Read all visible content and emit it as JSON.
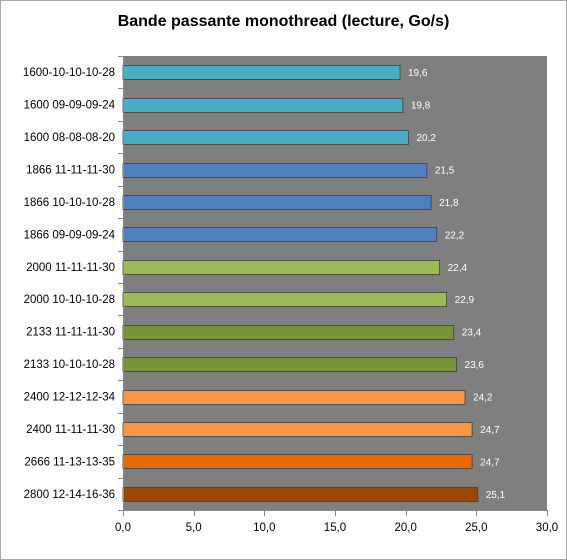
{
  "chart_data": {
    "type": "bar",
    "orientation": "horizontal",
    "title": "Bande passante monothread (lecture, Go/s)",
    "categories": [
      "1600-10-10-10-28",
      "1600 09-09-09-24",
      "1600 08-08-08-20",
      "1866 11-11-11-30",
      "1866 10-10-10-28",
      "1866 09-09-09-24",
      "2000 11-11-11-30",
      "2000 10-10-10-28",
      "2133 11-11-11-30",
      "2133 10-10-10-28",
      "2400 12-12-12-34",
      "2400 11-11-11-30",
      "2666 11-13-13-35",
      "2800 12-14-16-36"
    ],
    "values": [
      19.6,
      19.8,
      20.2,
      21.5,
      21.8,
      22.2,
      22.4,
      22.9,
      23.4,
      23.6,
      24.2,
      24.7,
      24.7,
      25.1
    ],
    "data_labels": [
      "19,6",
      "19,8",
      "20,2",
      "21,5",
      "21,8",
      "22,2",
      "22,4",
      "22,9",
      "23,4",
      "23,6",
      "24,2",
      "24,7",
      "24,7",
      "25,1"
    ],
    "bar_colors": [
      "#4bacc6",
      "#4bacc6",
      "#4bacc6",
      "#4f81bd",
      "#4f81bd",
      "#4f81bd",
      "#9bbb59",
      "#9bbb59",
      "#77933c",
      "#77933c",
      "#f79646",
      "#f79646",
      "#e46c0a",
      "#984807"
    ],
    "xlim": [
      0,
      30
    ],
    "xticks": [
      0,
      5,
      10,
      15,
      20,
      25,
      30
    ],
    "xtick_labels": [
      "0,0",
      "5,0",
      "10,0",
      "15,0",
      "20,0",
      "25,0",
      "30,0"
    ],
    "plot_background": "#7f7f7f",
    "grid": false,
    "legend": "none"
  }
}
